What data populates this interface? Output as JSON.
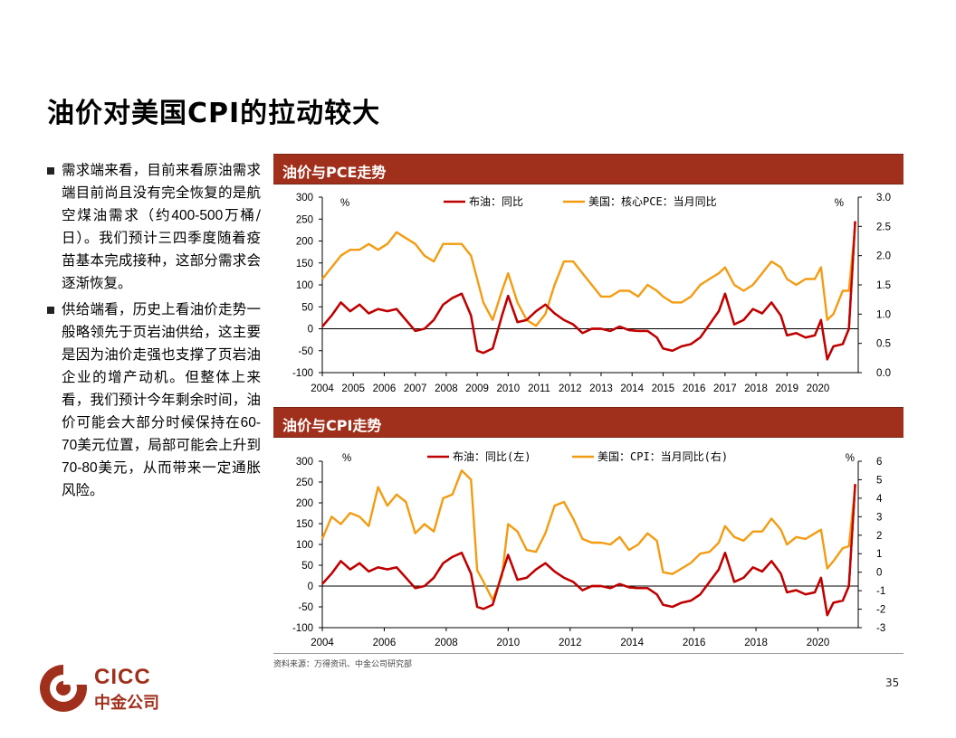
{
  "page": {
    "title": "油价对美国CPI的拉动较大",
    "page_number": "35",
    "source_note": "资料来源：万得资讯、中金公司研究部"
  },
  "logo": {
    "en": "CICC",
    "cn": "中金公司"
  },
  "bullets": [
    {
      "segments": [
        {
          "t": "需求端来看，目前来看原油需求端目前尚且没有完全恢复的是航空煤油需求（约"
        },
        {
          "t": "400-500",
          "sans": true
        },
        {
          "t": "万桶/日）。我们预计三四季度随着疫苗基本完成接种，这部分需求会逐渐恢复。"
        }
      ]
    },
    {
      "segments": [
        {
          "t": "供给端看，历史上看油价走势一般略领先于页岩油供给，这主要是因为油价走强也支撑了页岩油企业的增产动机。但整体上来看，我们预计今年剩余时间，油价可能会大部分时候保持在"
        },
        {
          "t": "60-70",
          "sans": true
        },
        {
          "t": "美元位置，局部可能会上升到"
        },
        {
          "t": "70-80",
          "sans": true
        },
        {
          "t": "美元，从而带来一定通胀风险。"
        }
      ]
    }
  ],
  "colors": {
    "brent": "#C00000",
    "us": "#F39C12",
    "header": "#A0301C"
  },
  "chart_data": [
    {
      "type": "line",
      "title": "油价与PCE走势",
      "left_unit": "%",
      "right_unit": "%",
      "ylim_left": [
        -100,
        300
      ],
      "ylim_right": [
        0.0,
        3.0
      ],
      "yticks_left": [
        "300",
        "250",
        "200",
        "150",
        "100",
        "50",
        "0",
        "-50",
        "-100"
      ],
      "yticks_right": [
        "3.0",
        "2.5",
        "2.0",
        "1.5",
        "1.0",
        "0.5",
        "0.0"
      ],
      "x_range": [
        2004,
        2021.3
      ],
      "xticks": [
        "2004",
        "2005",
        "2006",
        "2007",
        "2008",
        "2009",
        "2010",
        "2011",
        "2012",
        "2013",
        "2014",
        "2015",
        "2016",
        "2017",
        "2018",
        "2019",
        "2020"
      ],
      "series": [
        {
          "name": "布油：同比",
          "axis": "left",
          "x": [
            2004,
            2004.3,
            2004.6,
            2004.9,
            2005.2,
            2005.5,
            2005.8,
            2006.1,
            2006.4,
            2006.7,
            2007.0,
            2007.3,
            2007.6,
            2007.9,
            2008.2,
            2008.5,
            2008.8,
            2009.0,
            2009.2,
            2009.5,
            2009.8,
            2010.0,
            2010.3,
            2010.6,
            2010.9,
            2011.2,
            2011.5,
            2011.8,
            2012.1,
            2012.4,
            2012.7,
            2013.0,
            2013.3,
            2013.6,
            2013.9,
            2014.2,
            2014.5,
            2014.8,
            2015.0,
            2015.3,
            2015.6,
            2015.9,
            2016.2,
            2016.5,
            2016.8,
            2017.0,
            2017.3,
            2017.6,
            2017.9,
            2018.2,
            2018.5,
            2018.8,
            2019.0,
            2019.3,
            2019.6,
            2019.9,
            2020.1,
            2020.3,
            2020.5,
            2020.8,
            2021.0,
            2021.2
          ],
          "values": [
            5,
            30,
            60,
            40,
            55,
            35,
            45,
            40,
            45,
            20,
            -5,
            0,
            20,
            55,
            70,
            80,
            30,
            -50,
            -55,
            -45,
            30,
            75,
            15,
            20,
            40,
            55,
            35,
            20,
            10,
            -10,
            0,
            0,
            -5,
            5,
            -3,
            -5,
            -5,
            -20,
            -45,
            -50,
            -40,
            -35,
            -20,
            10,
            40,
            80,
            10,
            20,
            45,
            35,
            60,
            30,
            -15,
            -10,
            -20,
            -15,
            20,
            -70,
            -40,
            -35,
            0,
            245
          ]
        },
        {
          "name": "美国：核心PCE：当月同比",
          "axis": "right",
          "x": [
            2004,
            2004.3,
            2004.6,
            2004.9,
            2005.2,
            2005.5,
            2005.8,
            2006.1,
            2006.4,
            2006.7,
            2007.0,
            2007.3,
            2007.6,
            2007.9,
            2008.2,
            2008.5,
            2008.8,
            2009.0,
            2009.2,
            2009.5,
            2009.8,
            2010.0,
            2010.3,
            2010.6,
            2010.9,
            2011.2,
            2011.5,
            2011.8,
            2012.1,
            2012.4,
            2012.7,
            2013.0,
            2013.3,
            2013.6,
            2013.9,
            2014.2,
            2014.5,
            2014.8,
            2015.0,
            2015.3,
            2015.6,
            2015.9,
            2016.2,
            2016.5,
            2016.8,
            2017.0,
            2017.3,
            2017.6,
            2017.9,
            2018.2,
            2018.5,
            2018.8,
            2019.0,
            2019.3,
            2019.6,
            2019.9,
            2020.1,
            2020.3,
            2020.5,
            2020.8,
            2021.0,
            2021.2
          ],
          "values": [
            1.6,
            1.8,
            2.0,
            2.1,
            2.1,
            2.2,
            2.1,
            2.2,
            2.4,
            2.3,
            2.2,
            2.0,
            1.9,
            2.2,
            2.2,
            2.2,
            2.0,
            1.6,
            1.2,
            0.9,
            1.4,
            1.7,
            1.2,
            0.9,
            0.8,
            1.0,
            1.5,
            1.9,
            1.9,
            1.7,
            1.5,
            1.3,
            1.3,
            1.4,
            1.4,
            1.3,
            1.5,
            1.4,
            1.3,
            1.2,
            1.2,
            1.3,
            1.5,
            1.6,
            1.7,
            1.8,
            1.5,
            1.4,
            1.5,
            1.7,
            1.9,
            1.8,
            1.6,
            1.5,
            1.6,
            1.6,
            1.8,
            0.9,
            1.0,
            1.4,
            1.4,
            2.5
          ]
        }
      ]
    },
    {
      "type": "line",
      "title": "油价与CPI走势",
      "left_unit": "%",
      "right_unit": "%",
      "ylim_left": [
        -100,
        300
      ],
      "ylim_right": [
        -3,
        6
      ],
      "yticks_left": [
        "300",
        "250",
        "200",
        "150",
        "100",
        "50",
        "0",
        "-50",
        "-100"
      ],
      "yticks_right": [
        "6",
        "5",
        "4",
        "3",
        "2",
        "1",
        "0",
        "-1",
        "-2",
        "-3"
      ],
      "x_range": [
        2004,
        2021.3
      ],
      "xticks": [
        "2004",
        "2006",
        "2008",
        "2010",
        "2012",
        "2014",
        "2016",
        "2018",
        "2020"
      ],
      "series": [
        {
          "name": "布油：同比(左)",
          "axis": "left",
          "x": [
            2004,
            2004.3,
            2004.6,
            2004.9,
            2005.2,
            2005.5,
            2005.8,
            2006.1,
            2006.4,
            2006.7,
            2007.0,
            2007.3,
            2007.6,
            2007.9,
            2008.2,
            2008.5,
            2008.8,
            2009.0,
            2009.2,
            2009.5,
            2009.8,
            2010.0,
            2010.3,
            2010.6,
            2010.9,
            2011.2,
            2011.5,
            2011.8,
            2012.1,
            2012.4,
            2012.7,
            2013.0,
            2013.3,
            2013.6,
            2013.9,
            2014.2,
            2014.5,
            2014.8,
            2015.0,
            2015.3,
            2015.6,
            2015.9,
            2016.2,
            2016.5,
            2016.8,
            2017.0,
            2017.3,
            2017.6,
            2017.9,
            2018.2,
            2018.5,
            2018.8,
            2019.0,
            2019.3,
            2019.6,
            2019.9,
            2020.1,
            2020.3,
            2020.5,
            2020.8,
            2021.0,
            2021.2
          ],
          "values": [
            5,
            30,
            60,
            40,
            55,
            35,
            45,
            40,
            45,
            20,
            -5,
            0,
            20,
            55,
            70,
            80,
            30,
            -50,
            -55,
            -45,
            30,
            75,
            15,
            20,
            40,
            55,
            35,
            20,
            10,
            -10,
            0,
            0,
            -5,
            5,
            -3,
            -5,
            -5,
            -20,
            -45,
            -50,
            -40,
            -35,
            -20,
            10,
            40,
            80,
            10,
            20,
            45,
            35,
            60,
            30,
            -15,
            -10,
            -20,
            -15,
            20,
            -70,
            -40,
            -35,
            0,
            245
          ]
        },
        {
          "name": "美国：CPI：当月同比(右)",
          "axis": "right",
          "x": [
            2004,
            2004.3,
            2004.6,
            2004.9,
            2005.2,
            2005.5,
            2005.8,
            2006.1,
            2006.4,
            2006.7,
            2007.0,
            2007.3,
            2007.6,
            2007.9,
            2008.2,
            2008.5,
            2008.8,
            2009.0,
            2009.2,
            2009.5,
            2009.8,
            2010.0,
            2010.3,
            2010.6,
            2010.9,
            2011.2,
            2011.5,
            2011.8,
            2012.1,
            2012.4,
            2012.7,
            2013.0,
            2013.3,
            2013.6,
            2013.9,
            2014.2,
            2014.5,
            2014.8,
            2015.0,
            2015.3,
            2015.6,
            2015.9,
            2016.2,
            2016.5,
            2016.8,
            2017.0,
            2017.3,
            2017.6,
            2017.9,
            2018.2,
            2018.5,
            2018.8,
            2019.0,
            2019.3,
            2019.6,
            2019.9,
            2020.1,
            2020.3,
            2020.5,
            2020.8,
            2021.0,
            2021.2
          ],
          "values": [
            1.8,
            3.0,
            2.6,
            3.2,
            3.0,
            2.5,
            4.6,
            3.6,
            4.2,
            3.8,
            2.1,
            2.6,
            2.2,
            4.0,
            4.2,
            5.5,
            5.0,
            0.1,
            -0.5,
            -1.5,
            -0.2,
            2.6,
            2.2,
            1.2,
            1.1,
            2.1,
            3.6,
            3.8,
            2.9,
            1.8,
            1.6,
            1.6,
            1.5,
            1.9,
            1.2,
            1.5,
            2.1,
            1.7,
            0.0,
            -0.1,
            0.2,
            0.5,
            1.0,
            1.1,
            1.6,
            2.5,
            1.9,
            1.7,
            2.2,
            2.2,
            2.9,
            2.3,
            1.5,
            1.9,
            1.8,
            2.1,
            2.3,
            0.2,
            0.6,
            1.3,
            1.4,
            4.6
          ]
        }
      ]
    }
  ]
}
